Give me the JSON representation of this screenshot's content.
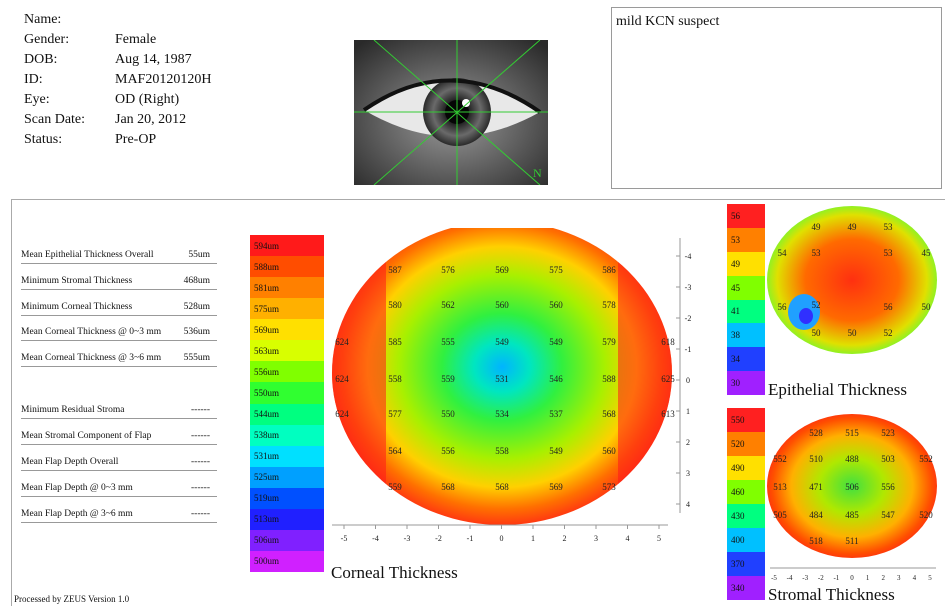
{
  "patient": {
    "rows": [
      {
        "label": "Name:",
        "value": ""
      },
      {
        "label": "Gender:",
        "value": "Female"
      },
      {
        "label": "DOB:",
        "value": "Aug 14, 1987"
      },
      {
        "label": "ID:",
        "value": "MAF20120120H"
      },
      {
        "label": "Eye:",
        "value": "OD (Right)"
      },
      {
        "label": "Scan Date:",
        "value": "Jan 20, 2012"
      },
      {
        "label": "Status:",
        "value": "Pre-OP"
      }
    ]
  },
  "eye_image": {
    "marker": "N"
  },
  "notes": {
    "text": "mild KCN suspect"
  },
  "metrics": [
    {
      "label": "Mean Epithelial Thickness Overall",
      "value": "55um"
    },
    {
      "label": "Minimum Stromal Thickness",
      "value": "468um"
    },
    {
      "label": "Minimum Corneal Thickness",
      "value": "528um"
    },
    {
      "label": "Mean Corneal Thickness @ 0~3 mm",
      "value": "536um"
    },
    {
      "label": "Mean Corneal Thickness @ 3~6 mm",
      "value": "555um"
    },
    {
      "label": "Minimum Residual Stroma",
      "value": "------"
    },
    {
      "label": "Mean Stromal Component of Flap",
      "value": "------"
    },
    {
      "label": "Mean Flap Depth Overall",
      "value": "------"
    },
    {
      "label": "Mean Flap Depth @ 0~3 mm",
      "value": "------"
    },
    {
      "label": "Mean Flap Depth @ 3~6 mm",
      "value": "------"
    }
  ],
  "footer": {
    "version": "Processed by ZEUS Version 1.0"
  },
  "corneal": {
    "title": "Corneal Thickness",
    "scale": [
      "594um",
      "588um",
      "581um",
      "575um",
      "569um",
      "563um",
      "556um",
      "550um",
      "544um",
      "538um",
      "531um",
      "525um",
      "519um",
      "513um",
      "506um",
      "500um"
    ],
    "scale_colors": [
      "#ff1a1a",
      "#ff4d00",
      "#ff8000",
      "#ffb000",
      "#ffe000",
      "#d8ff00",
      "#80ff00",
      "#30ff30",
      "#00ff80",
      "#00ffc0",
      "#00e0ff",
      "#00a0ff",
      "#0050ff",
      "#2020ff",
      "#8020ff",
      "#d020ff"
    ],
    "x_ticks": [
      "-5",
      "-4",
      "-3",
      "-2",
      "-1",
      "0",
      "1",
      "2",
      "3",
      "4",
      "5"
    ],
    "y_ticks": [
      "-4",
      "-3",
      "-2",
      "-1",
      "0",
      "1",
      "2",
      "3",
      "4"
    ],
    "values": [
      [
        "587",
        "576",
        "569",
        "575",
        "586"
      ],
      [
        "580",
        "562",
        "560",
        "560",
        "578"
      ],
      [
        "585",
        "555",
        "549",
        "579"
      ],
      [
        "558",
        "559",
        "531",
        "546",
        "588"
      ],
      [
        "577",
        "550",
        "534",
        "537",
        "568"
      ],
      [
        "564",
        "556",
        "558",
        "549",
        "560"
      ],
      [
        "559",
        "568",
        "568",
        "569",
        "573"
      ],
      [
        "624",
        "624",
        "624",
        "618",
        "625",
        "613"
      ]
    ]
  },
  "epithelial": {
    "title": "Epithelial Thickness",
    "scale": [
      "56",
      "53",
      "49",
      "45",
      "41",
      "38",
      "34",
      "30"
    ],
    "scale_colors": [
      "#ff2020",
      "#ff8000",
      "#ffe000",
      "#80ff00",
      "#00ff80",
      "#00c0ff",
      "#2040ff",
      "#a020ff"
    ],
    "values": [
      "49",
      "49",
      "53",
      "54",
      "53",
      "53",
      "45",
      "56",
      "52",
      "56",
      "50",
      "50",
      "50",
      "52"
    ]
  },
  "stromal": {
    "title": "Stromal Thickness",
    "scale": [
      "550",
      "520",
      "490",
      "460",
      "430",
      "400",
      "370",
      "340"
    ],
    "scale_colors": [
      "#ff2020",
      "#ff8000",
      "#ffe000",
      "#80ff00",
      "#00ff80",
      "#00c0ff",
      "#2040ff",
      "#a020ff"
    ],
    "x_ticks": [
      "-5",
      "-4",
      "-3",
      "-2",
      "-1",
      "0",
      "1",
      "2",
      "3",
      "4",
      "5"
    ],
    "values": [
      "528",
      "515",
      "523",
      "552",
      "510",
      "488",
      "503",
      "552",
      "513",
      "471",
      "506",
      "556",
      "505",
      "484",
      "485",
      "547",
      "520",
      "518",
      "511"
    ]
  }
}
